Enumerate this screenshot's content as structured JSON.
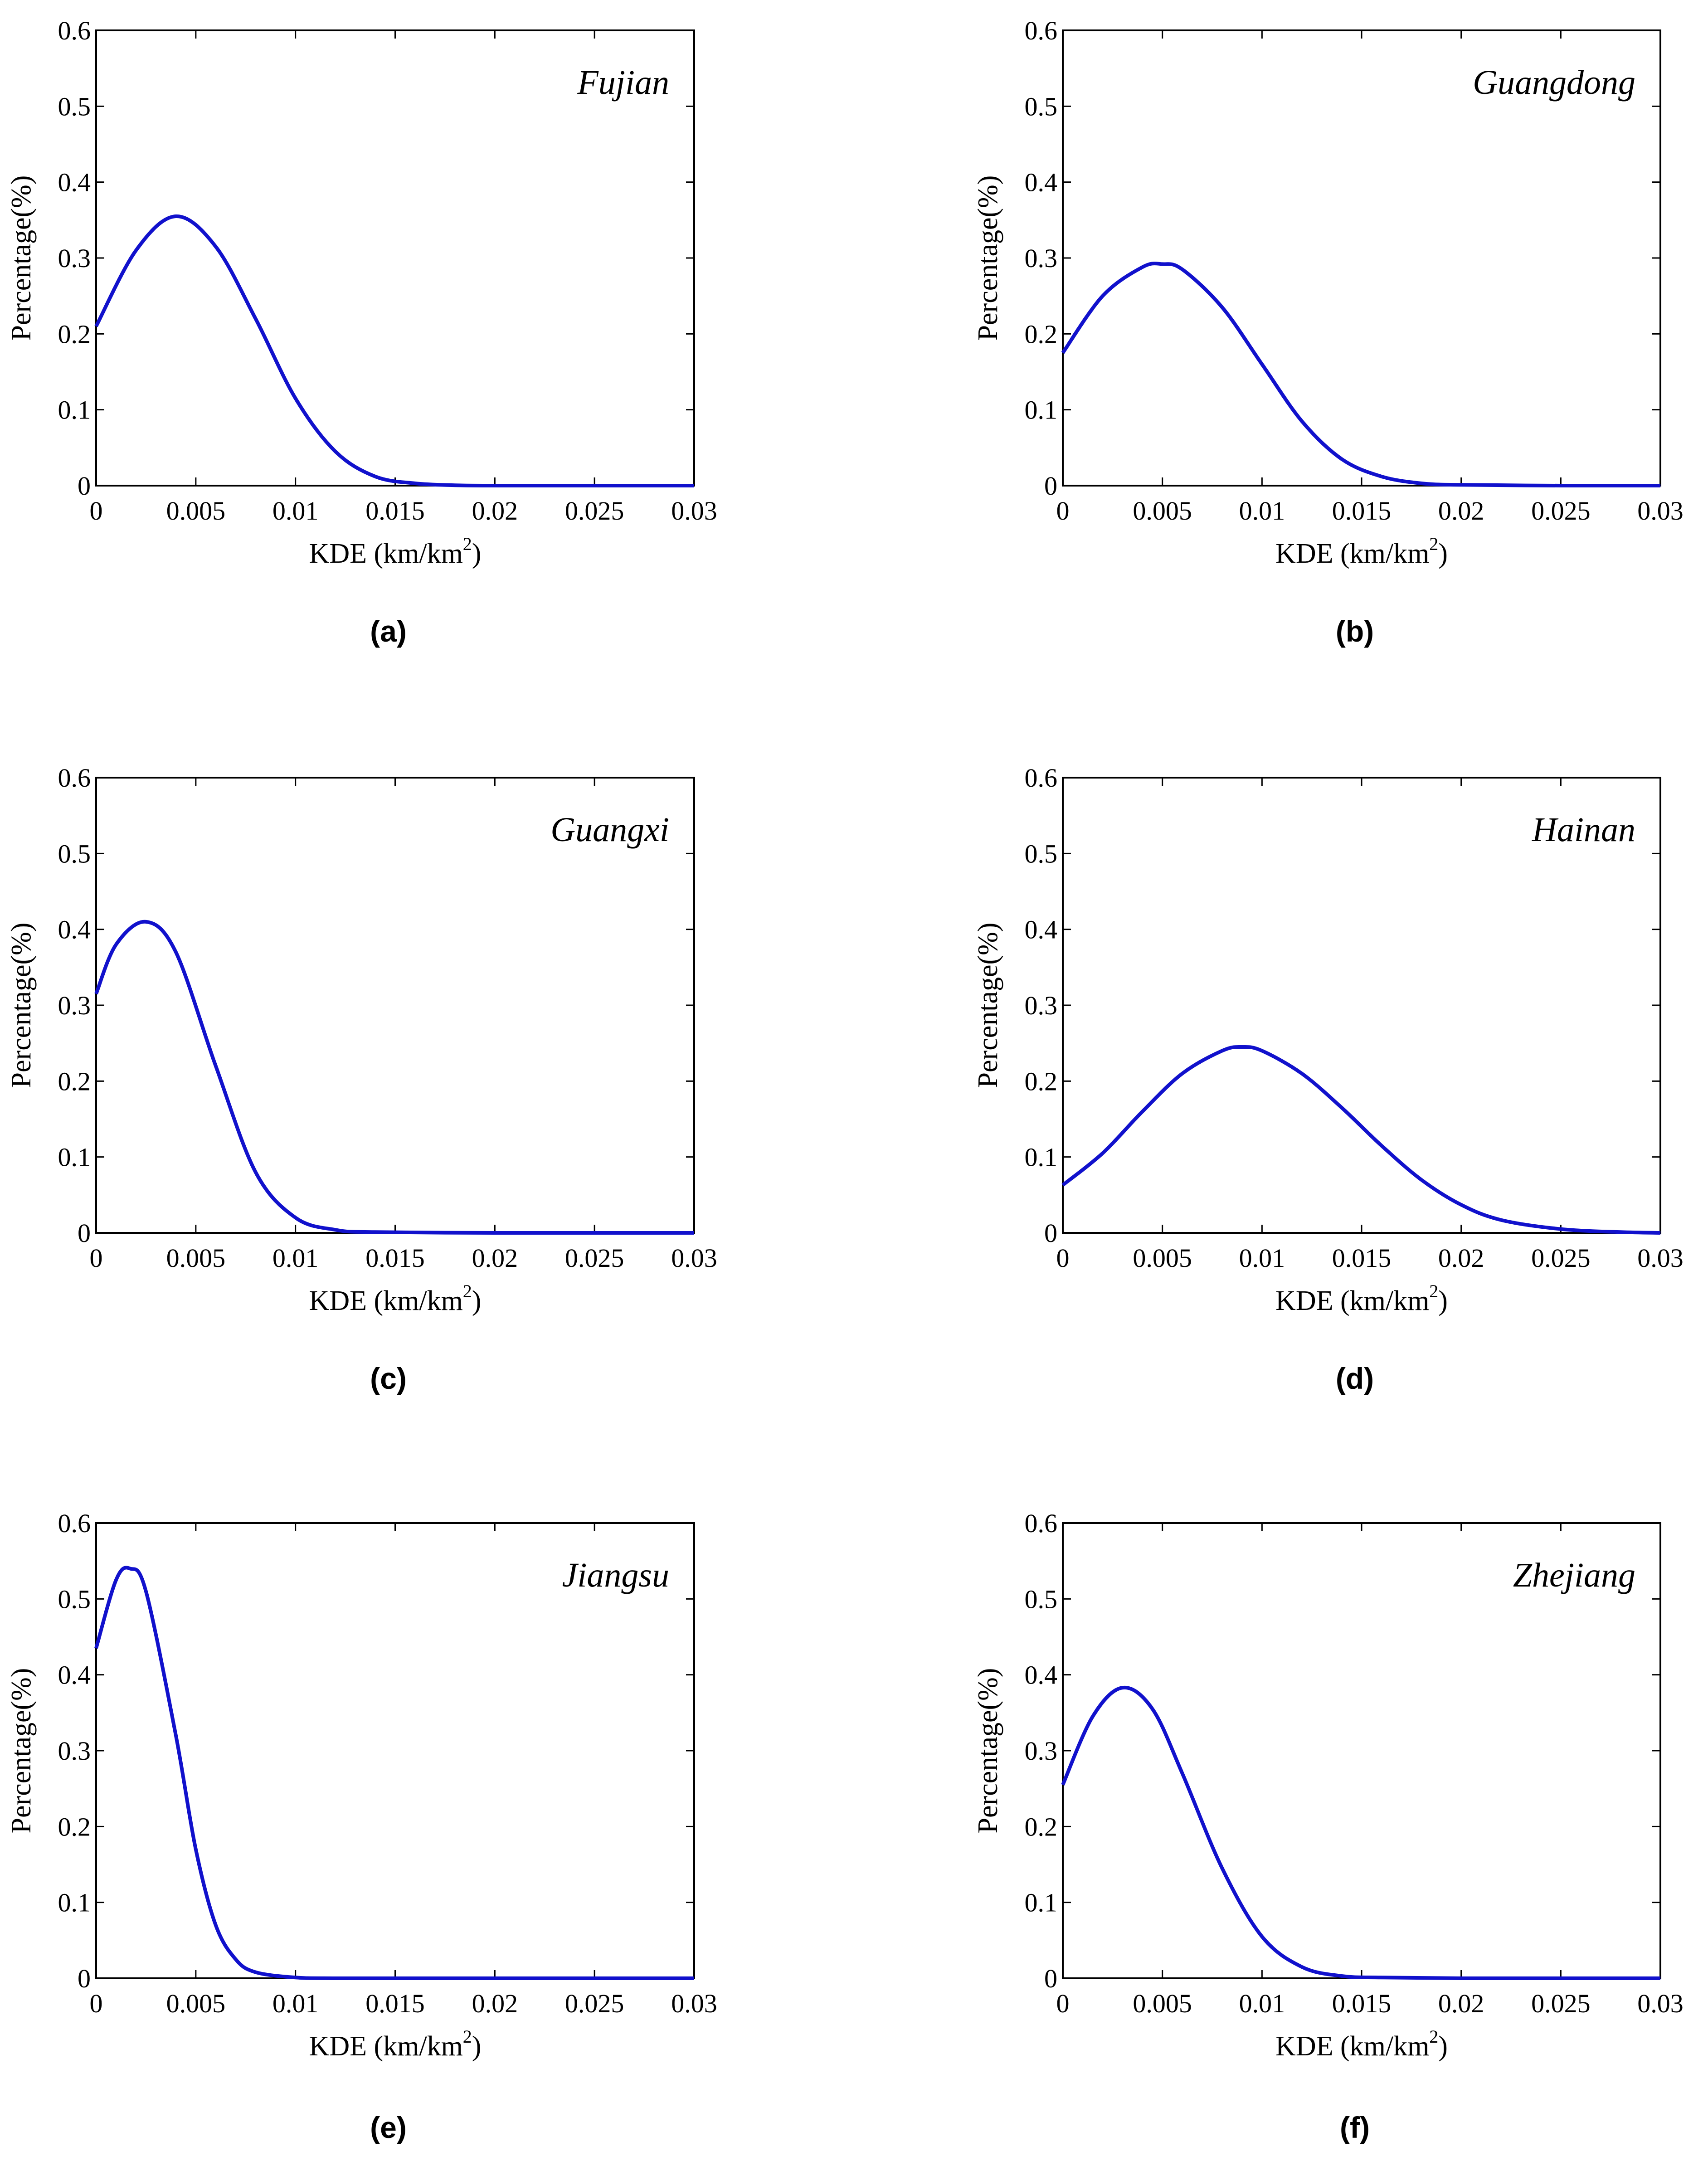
{
  "colors": {
    "curve": "#1111cc",
    "axis": "#000000",
    "background": "#ffffff"
  },
  "chart_data": [
    {
      "type": "line",
      "caption": "(a)",
      "region": "Fujian",
      "xlabel": "KDE (km/km",
      "xlabel_sup": "2",
      "xlabel_end": ")",
      "ylabel": "Percentage(%)",
      "xlim": [
        0,
        0.03
      ],
      "ylim": [
        0,
        0.6
      ],
      "xticks": [
        "0",
        "0.005",
        "0.01",
        "0.015",
        "0.02",
        "0.025",
        "0.03"
      ],
      "yticks": [
        "0",
        "0.1",
        "0.2",
        "0.3",
        "0.4",
        "0.5",
        "0.6"
      ],
      "series": [
        {
          "name": "Fujian",
          "x": [
            0,
            0.002,
            0.004,
            0.006,
            0.008,
            0.01,
            0.012,
            0.014,
            0.016,
            0.018,
            0.02,
            0.025,
            0.03
          ],
          "values": [
            0.21,
            0.31,
            0.355,
            0.315,
            0.22,
            0.115,
            0.045,
            0.012,
            0.003,
            0.0005,
            0,
            0,
            0
          ]
        }
      ]
    },
    {
      "type": "line",
      "caption": "(b)",
      "region": "Guangdong",
      "xlabel": "KDE (km/km",
      "xlabel_sup": "2",
      "xlabel_end": ")",
      "ylabel": "Percentage(%)",
      "xlim": [
        0,
        0.03
      ],
      "ylim": [
        0,
        0.6
      ],
      "xticks": [
        "0",
        "0.005",
        "0.01",
        "0.015",
        "0.02",
        "0.025",
        "0.03"
      ],
      "yticks": [
        "0",
        "0.1",
        "0.2",
        "0.3",
        "0.4",
        "0.5",
        "0.6"
      ],
      "series": [
        {
          "name": "Guangdong",
          "x": [
            0,
            0.002,
            0.004,
            0.005,
            0.006,
            0.008,
            0.01,
            0.012,
            0.014,
            0.016,
            0.018,
            0.02,
            0.025,
            0.03
          ],
          "values": [
            0.175,
            0.25,
            0.288,
            0.292,
            0.285,
            0.235,
            0.16,
            0.085,
            0.035,
            0.012,
            0.003,
            0.001,
            0,
            0
          ]
        }
      ]
    },
    {
      "type": "line",
      "caption": "(c)",
      "region": "Guangxi",
      "xlabel": "KDE (km/km",
      "xlabel_sup": "2",
      "xlabel_end": ")",
      "ylabel": "Percentage(%)",
      "xlim": [
        0,
        0.03
      ],
      "ylim": [
        0,
        0.6
      ],
      "xticks": [
        "0",
        "0.005",
        "0.01",
        "0.015",
        "0.02",
        "0.025",
        "0.03"
      ],
      "yticks": [
        "0",
        "0.1",
        "0.2",
        "0.3",
        "0.4",
        "0.5",
        "0.6"
      ],
      "series": [
        {
          "name": "Guangxi",
          "x": [
            0,
            0.001,
            0.0025,
            0.004,
            0.006,
            0.008,
            0.01,
            0.012,
            0.014,
            0.02,
            0.025,
            0.03
          ],
          "values": [
            0.315,
            0.38,
            0.41,
            0.37,
            0.22,
            0.08,
            0.02,
            0.004,
            0.001,
            0,
            0,
            0
          ]
        }
      ]
    },
    {
      "type": "line",
      "caption": "(d)",
      "region": "Hainan",
      "xlabel": "KDE (km/km",
      "xlabel_sup": "2",
      "xlabel_end": ")",
      "ylabel": "Percentage(%)",
      "xlim": [
        0,
        0.03
      ],
      "ylim": [
        0,
        0.6
      ],
      "xticks": [
        "0",
        "0.005",
        "0.01",
        "0.015",
        "0.02",
        "0.025",
        "0.03"
      ],
      "yticks": [
        "0",
        "0.1",
        "0.2",
        "0.3",
        "0.4",
        "0.5",
        "0.6"
      ],
      "series": [
        {
          "name": "Hainan",
          "x": [
            0,
            0.002,
            0.004,
            0.006,
            0.008,
            0.009,
            0.01,
            0.012,
            0.014,
            0.016,
            0.018,
            0.02,
            0.022,
            0.025,
            0.028,
            0.03
          ],
          "values": [
            0.063,
            0.105,
            0.16,
            0.21,
            0.24,
            0.245,
            0.24,
            0.21,
            0.165,
            0.115,
            0.07,
            0.037,
            0.017,
            0.005,
            0.001,
            0
          ]
        }
      ]
    },
    {
      "type": "line",
      "caption": "(e)",
      "region": "Jiangsu",
      "xlabel": "KDE (km/km",
      "xlabel_sup": "2",
      "xlabel_end": ")",
      "ylabel": "Percentage(%)",
      "xlim": [
        0,
        0.03
      ],
      "ylim": [
        0,
        0.6
      ],
      "xticks": [
        "0",
        "0.005",
        "0.01",
        "0.015",
        "0.02",
        "0.025",
        "0.03"
      ],
      "yticks": [
        "0",
        "0.1",
        "0.2",
        "0.3",
        "0.4",
        "0.5",
        "0.6"
      ],
      "series": [
        {
          "name": "Jiangsu",
          "x": [
            0,
            0.001,
            0.0017,
            0.0025,
            0.004,
            0.005,
            0.006,
            0.007,
            0.008,
            0.01,
            0.012,
            0.02,
            0.03
          ],
          "values": [
            0.435,
            0.525,
            0.54,
            0.51,
            0.32,
            0.17,
            0.07,
            0.025,
            0.008,
            0.001,
            0,
            0,
            0
          ]
        }
      ]
    },
    {
      "type": "line",
      "caption": "(f)",
      "region": "Zhejiang",
      "xlabel": "KDE (km/km",
      "xlabel_sup": "2",
      "xlabel_end": ")",
      "ylabel": "Percentage(%)",
      "xlim": [
        0,
        0.03
      ],
      "ylim": [
        0,
        0.6
      ],
      "xticks": [
        "0",
        "0.005",
        "0.01",
        "0.015",
        "0.02",
        "0.025",
        "0.03"
      ],
      "yticks": [
        "0",
        "0.1",
        "0.2",
        "0.3",
        "0.4",
        "0.5",
        "0.6"
      ],
      "series": [
        {
          "name": "Zhejiang",
          "x": [
            0,
            0.0015,
            0.003,
            0.0045,
            0.006,
            0.008,
            0.01,
            0.012,
            0.014,
            0.016,
            0.02,
            0.025,
            0.03
          ],
          "values": [
            0.255,
            0.345,
            0.383,
            0.355,
            0.27,
            0.145,
            0.055,
            0.015,
            0.003,
            0.001,
            0,
            0,
            0
          ]
        }
      ]
    }
  ]
}
